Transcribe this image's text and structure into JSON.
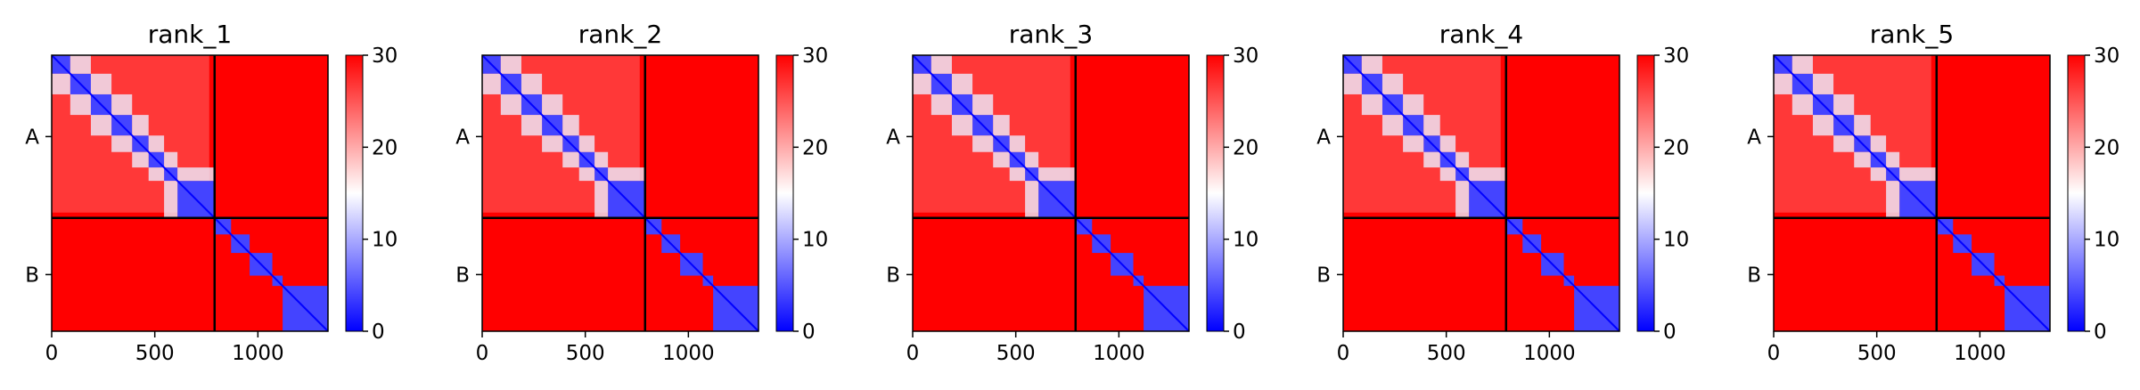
{
  "chart_data": {
    "type": "heatmap",
    "colormap": {
      "name": "bwr",
      "low": "#0000ff",
      "mid": "#ffffff",
      "high": "#ff0000"
    },
    "color_range": [
      0,
      30
    ],
    "colorbar_ticks": [
      "0",
      "10",
      "20",
      "30"
    ],
    "axis_range": [
      0,
      1340
    ],
    "x_ticks": [
      0,
      500,
      1000
    ],
    "x_tick_labels": [
      "0",
      "500",
      "1000"
    ],
    "chain_break": 790,
    "chains": [
      {
        "label": "A",
        "start": 0,
        "end": 790
      },
      {
        "label": "B",
        "start": 790,
        "end": 1340
      }
    ],
    "grid": false,
    "legend": "colorbar-right",
    "panels": [
      {
        "title": "rank_1",
        "domains": [
          [
            0,
            90
          ],
          [
            90,
            190
          ],
          [
            190,
            290
          ],
          [
            290,
            390
          ],
          [
            390,
            470
          ],
          [
            470,
            545
          ],
          [
            545,
            610
          ],
          [
            610,
            790
          ],
          [
            790,
            870
          ],
          [
            870,
            960
          ],
          [
            960,
            1070
          ],
          [
            1070,
            1120
          ],
          [
            1120,
            1340
          ]
        ]
      },
      {
        "title": "rank_2",
        "domains": [
          [
            0,
            90
          ],
          [
            90,
            190
          ],
          [
            190,
            290
          ],
          [
            290,
            390
          ],
          [
            390,
            470
          ],
          [
            470,
            545
          ],
          [
            545,
            610
          ],
          [
            610,
            790
          ],
          [
            790,
            870
          ],
          [
            870,
            960
          ],
          [
            960,
            1070
          ],
          [
            1070,
            1120
          ],
          [
            1120,
            1340
          ]
        ]
      },
      {
        "title": "rank_3",
        "domains": [
          [
            0,
            90
          ],
          [
            90,
            190
          ],
          [
            190,
            290
          ],
          [
            290,
            390
          ],
          [
            390,
            470
          ],
          [
            470,
            545
          ],
          [
            545,
            610
          ],
          [
            610,
            790
          ],
          [
            790,
            870
          ],
          [
            870,
            960
          ],
          [
            960,
            1070
          ],
          [
            1070,
            1120
          ],
          [
            1120,
            1340
          ]
        ]
      },
      {
        "title": "rank_4",
        "domains": [
          [
            0,
            90
          ],
          [
            90,
            190
          ],
          [
            190,
            290
          ],
          [
            290,
            390
          ],
          [
            390,
            470
          ],
          [
            470,
            545
          ],
          [
            545,
            610
          ],
          [
            610,
            790
          ],
          [
            790,
            870
          ],
          [
            870,
            960
          ],
          [
            960,
            1070
          ],
          [
            1070,
            1120
          ],
          [
            1120,
            1340
          ]
        ]
      },
      {
        "title": "rank_5",
        "domains": [
          [
            0,
            90
          ],
          [
            90,
            190
          ],
          [
            190,
            290
          ],
          [
            290,
            390
          ],
          [
            390,
            470
          ],
          [
            470,
            545
          ],
          [
            545,
            610
          ],
          [
            610,
            790
          ],
          [
            790,
            870
          ],
          [
            870,
            960
          ],
          [
            960,
            1070
          ],
          [
            1070,
            1120
          ],
          [
            1120,
            1340
          ]
        ]
      }
    ]
  }
}
